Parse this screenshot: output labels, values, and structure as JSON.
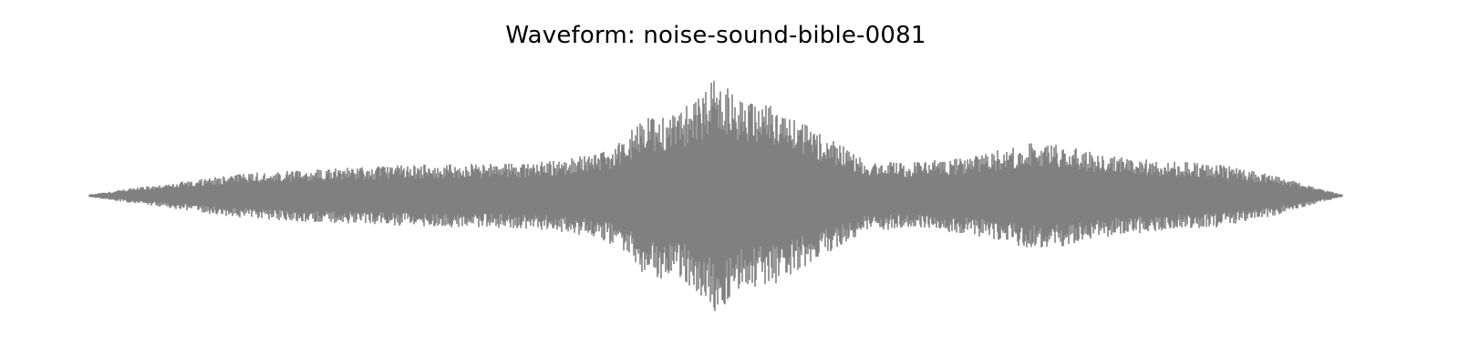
{
  "chart_data": {
    "type": "area",
    "title": "Waveform: noise-sound-bible-0081",
    "xlabel": "",
    "ylabel": "",
    "xlim": [
      0,
      1
    ],
    "ylim": [
      -1.0,
      1.0
    ],
    "axes_visible": false,
    "grid": false,
    "legend": "none",
    "color": "#808080",
    "envelope": {
      "x": [
        0.0,
        0.02,
        0.05,
        0.08,
        0.1,
        0.13,
        0.16,
        0.2,
        0.25,
        0.3,
        0.35,
        0.37,
        0.4,
        0.42,
        0.43,
        0.44,
        0.445,
        0.45,
        0.455,
        0.46,
        0.48,
        0.49,
        0.5,
        0.52,
        0.55,
        0.56,
        0.6,
        0.62,
        0.65,
        0.7,
        0.75,
        0.78,
        0.8,
        0.85,
        0.9,
        0.95,
        0.98,
        1.0
      ],
      "amplitude": [
        0.01,
        0.04,
        0.08,
        0.12,
        0.15,
        0.18,
        0.2,
        0.22,
        0.24,
        0.25,
        0.26,
        0.28,
        0.32,
        0.4,
        0.48,
        0.6,
        0.68,
        0.6,
        0.68,
        0.62,
        0.72,
        0.8,
        0.95,
        0.74,
        0.7,
        0.62,
        0.4,
        0.28,
        0.26,
        0.3,
        0.42,
        0.4,
        0.34,
        0.28,
        0.25,
        0.15,
        0.06,
        0.01
      ]
    }
  }
}
